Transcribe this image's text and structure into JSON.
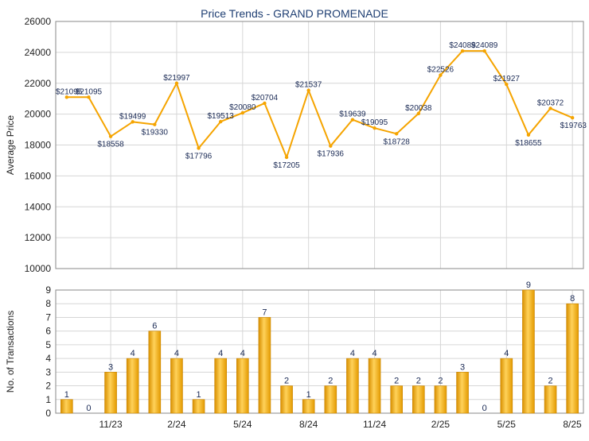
{
  "chart_data": [
    {
      "type": "line",
      "title": "Price Trends - GRAND PROMENADE",
      "ylabel": "Average Price",
      "xlabel": "",
      "ylim": [
        10000,
        26000
      ],
      "yticks": [
        "10000",
        "12000",
        "14000",
        "16000",
        "18000",
        "20000",
        "22000",
        "24000",
        "26000"
      ],
      "grid": true,
      "color": "#f5a400",
      "values": [
        21095,
        21095,
        18558,
        19499,
        19330,
        21997,
        17796,
        19513,
        20080,
        20704,
        17205,
        21537,
        17936,
        19639,
        19095,
        18728,
        20038,
        22526,
        24089,
        24089,
        21927,
        18655,
        20372,
        19763
      ],
      "labels": [
        "$21095",
        "$21095",
        "$18558",
        "$19499",
        "$19330",
        "$21997",
        "$17796",
        "$19513",
        "$20080",
        "$20704",
        "$17205",
        "$21537",
        "$17936",
        "$19639",
        "$19095",
        "$18728",
        "$20038",
        "$22526",
        "$24089",
        "$24089",
        "$21927",
        "$18655",
        "$20372",
        "$19763"
      ]
    },
    {
      "type": "bar",
      "ylabel": "No. of Transactions",
      "ylim": [
        0,
        9
      ],
      "yticks": [
        "0",
        "1",
        "2",
        "3",
        "4",
        "5",
        "6",
        "7",
        "8",
        "9"
      ],
      "grid": true,
      "color": "#f5a400",
      "values": [
        1,
        0,
        3,
        4,
        6,
        4,
        1,
        4,
        4,
        7,
        2,
        1,
        2,
        4,
        4,
        2,
        2,
        2,
        3,
        0,
        4,
        9,
        2,
        8
      ],
      "x_ticks": [
        "11/23",
        "2/24",
        "5/24",
        "8/24",
        "11/24",
        "2/25",
        "5/25",
        "8/25"
      ]
    }
  ]
}
